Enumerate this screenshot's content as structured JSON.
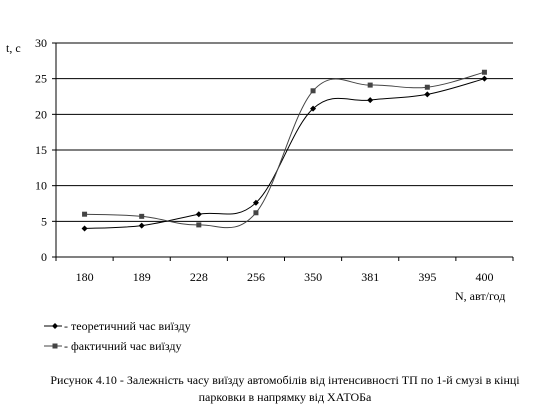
{
  "chart_data": {
    "type": "line",
    "categories": [
      "180",
      "189",
      "228",
      "256",
      "350",
      "381",
      "395",
      "400"
    ],
    "series": [
      {
        "name": "- теоретичний час виїзду",
        "values": [
          4.0,
          4.4,
          6.0,
          7.6,
          20.8,
          22.0,
          22.8,
          25.0
        ],
        "color": "#000000",
        "marker": "diamond"
      },
      {
        "name": "- фактичний час виїзду",
        "values": [
          6.0,
          5.7,
          4.5,
          6.2,
          23.3,
          24.1,
          23.8,
          25.9
        ],
        "color": "#444444",
        "marker": "square"
      }
    ],
    "ylabel": "t, с",
    "xlabel": "N, авт/год",
    "ylim": [
      0,
      30
    ],
    "yticks": [
      "0",
      "5",
      "10",
      "15",
      "20",
      "25",
      "30"
    ],
    "grid": true,
    "smoothed": true,
    "legend_position": "bottom-left"
  },
  "caption": {
    "line1": "Рисунок 4.10 - Залежність часу виїзду автомобілів від інтенсивності ТП по 1-й смузі в кінці",
    "line2": "парковки в напрямку від ХАТОБа"
  }
}
